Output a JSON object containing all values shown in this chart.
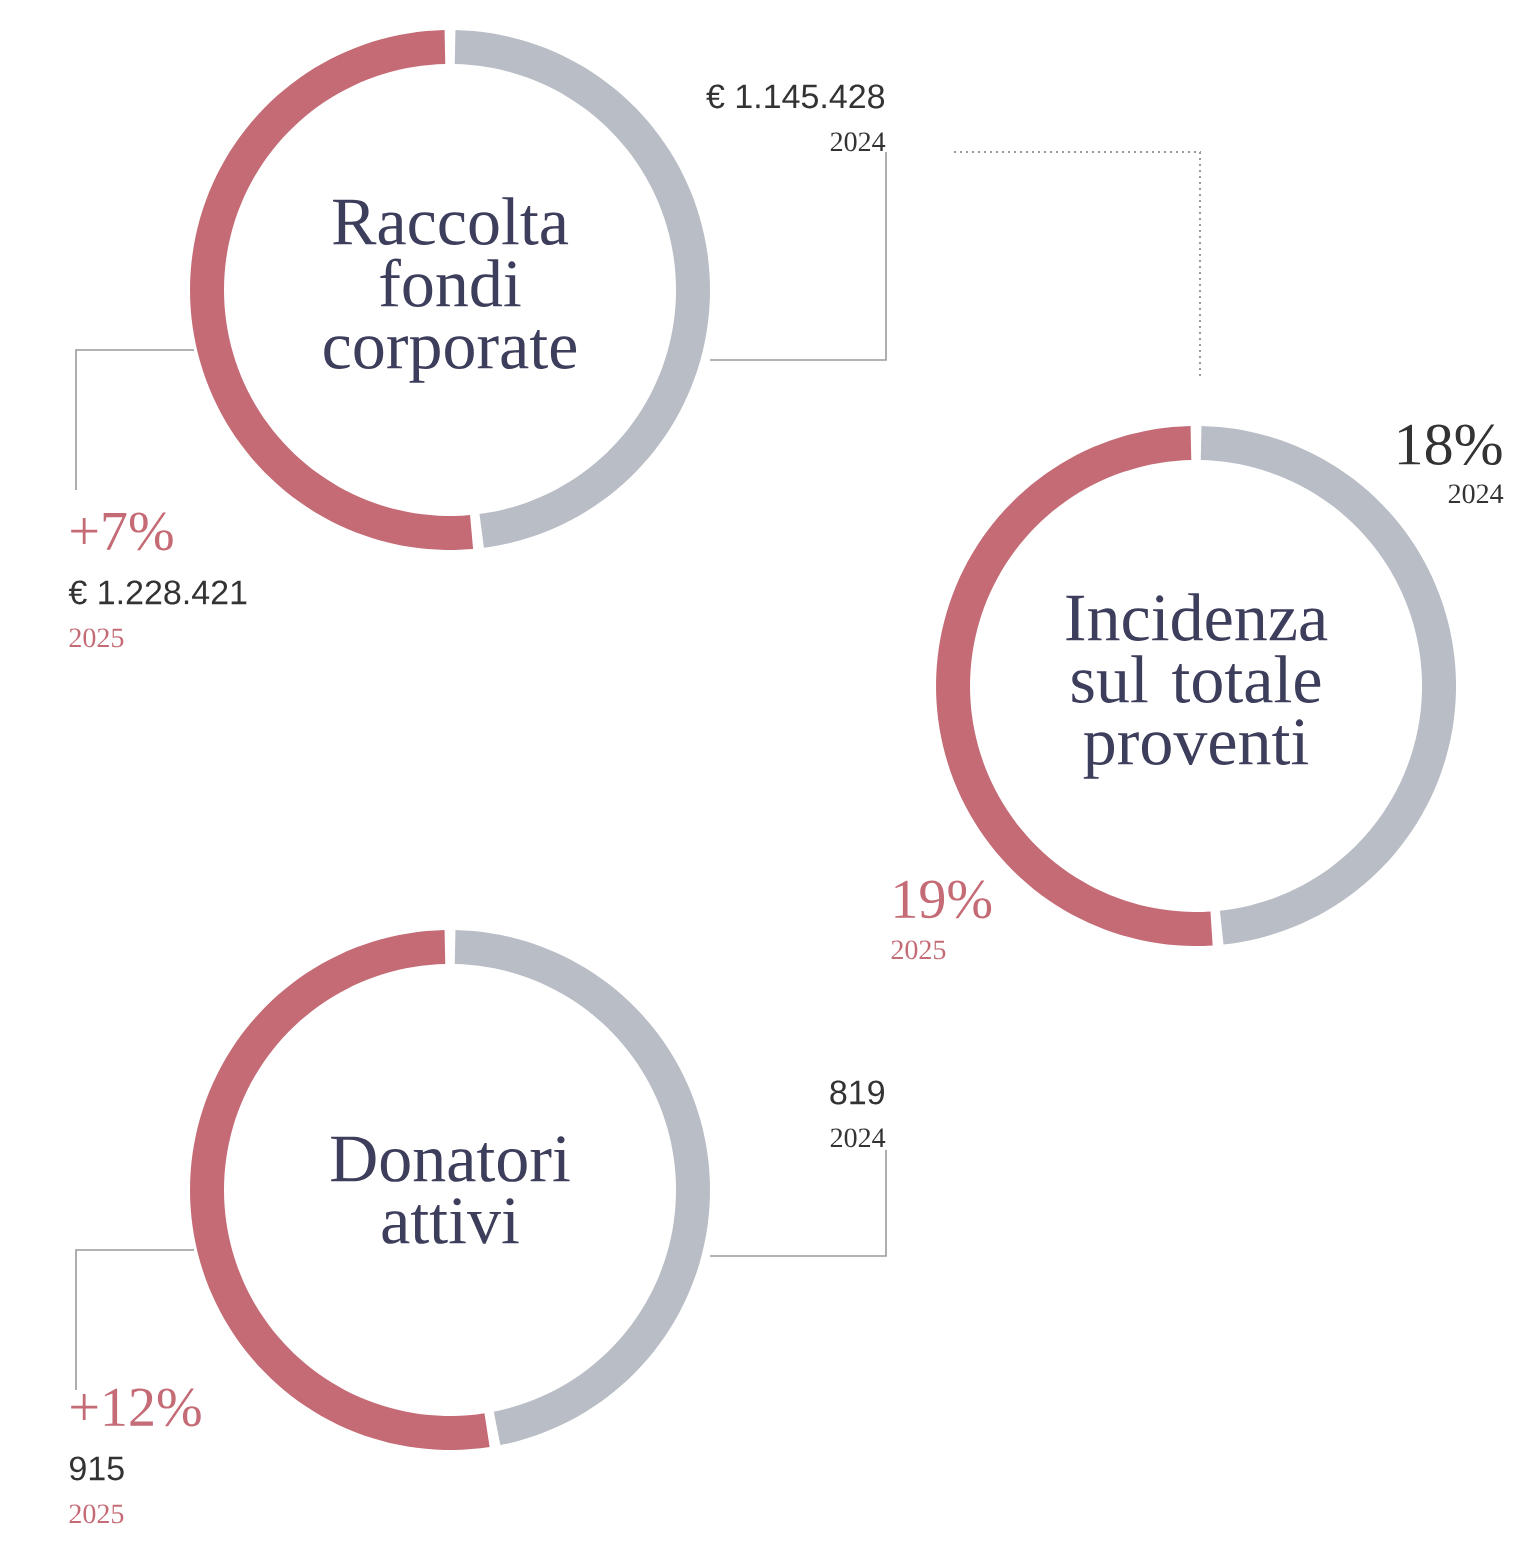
{
  "chart_data": [
    {
      "type": "donut",
      "title": "Raccolta fondi corporate",
      "categories": [
        "2024",
        "2025"
      ],
      "values": [
        1145428,
        1228421
      ],
      "colors": [
        "#b9bec6",
        "#c56b76"
      ],
      "value_labels": [
        "€ 1.145.428",
        "€ 1.228.421"
      ],
      "annotations": [
        "+7%"
      ]
    },
    {
      "type": "donut",
      "title": "Incidenza sul totale proventi",
      "categories": [
        "2024",
        "2025"
      ],
      "values": [
        18,
        19
      ],
      "colors": [
        "#b9bec6",
        "#c56b76"
      ],
      "value_labels": [
        "18%",
        "19%"
      ]
    },
    {
      "type": "donut",
      "title": "Donatori attivi",
      "categories": [
        "2024",
        "2025"
      ],
      "values": [
        819,
        915
      ],
      "colors": [
        "#b9bec6",
        "#c56b76"
      ],
      "value_labels": [
        "819",
        "915"
      ],
      "annotations": [
        "+12%"
      ]
    }
  ]
}
